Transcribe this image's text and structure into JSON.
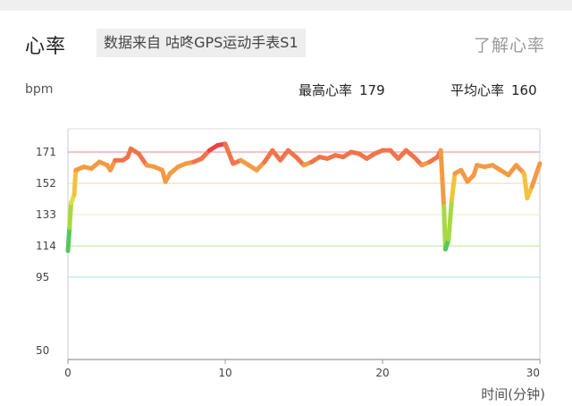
{
  "header": {
    "title": "心率",
    "source_tag": "数据来自 咕咚GPS运动手表S1",
    "learn_link": "了解心率"
  },
  "stats": {
    "unit": "bpm",
    "max_label": "最高心率",
    "max_value": "179",
    "avg_label": "平均心率",
    "avg_value": "160"
  },
  "chart_data": {
    "type": "line",
    "xlabel": "时间(分钟)",
    "ylabel": "bpm",
    "xlim": [
      0,
      30
    ],
    "x_ticks": [
      0,
      10,
      20,
      30
    ],
    "y_ticks": [
      50,
      95,
      114,
      133,
      152,
      171
    ],
    "zone_lines": [
      {
        "value": 95,
        "color": "#a7e5e8"
      },
      {
        "value": 114,
        "color": "#b5e88e"
      },
      {
        "value": 133,
        "color": "#eef0b8"
      },
      {
        "value": 152,
        "color": "#f7d09a"
      },
      {
        "value": 171,
        "color": "#ef8a8a"
      }
    ],
    "x": [
      0,
      0.1,
      0.2,
      0.4,
      0.5,
      1.0,
      1.5,
      2.0,
      2.5,
      2.7,
      3.0,
      3.5,
      3.8,
      4.0,
      4.5,
      5.0,
      5.5,
      6.0,
      6.2,
      6.5,
      7.0,
      7.5,
      8.0,
      8.5,
      9.0,
      9.5,
      10.0,
      10.5,
      11.0,
      11.5,
      12.0,
      12.5,
      13.0,
      13.5,
      14.0,
      14.5,
      15.0,
      15.5,
      16.0,
      16.5,
      17.0,
      17.5,
      18.0,
      18.5,
      19.0,
      19.5,
      20.0,
      20.5,
      21.0,
      21.5,
      22.0,
      22.5,
      23.0,
      23.5,
      23.7,
      23.9,
      24.0,
      24.2,
      24.4,
      24.6,
      25.0,
      25.4,
      25.8,
      26.0,
      26.5,
      27.0,
      27.5,
      28.0,
      28.5,
      29.0,
      29.2,
      29.5,
      30.0
    ],
    "y": [
      111,
      125,
      140,
      145,
      160,
      162,
      161,
      165,
      163,
      160,
      166,
      166,
      168,
      173,
      170,
      163,
      162,
      160,
      153,
      158,
      162,
      164,
      165,
      167,
      172,
      175,
      176,
      164,
      166,
      163,
      160,
      165,
      172,
      166,
      172,
      168,
      163,
      165,
      168,
      167,
      169,
      168,
      171,
      170,
      167,
      170,
      172,
      172,
      167,
      172,
      168,
      163,
      165,
      168,
      172,
      138,
      112,
      118,
      142,
      158,
      160,
      153,
      157,
      163,
      162,
      163,
      160,
      157,
      163,
      158,
      143,
      150,
      164
    ]
  }
}
